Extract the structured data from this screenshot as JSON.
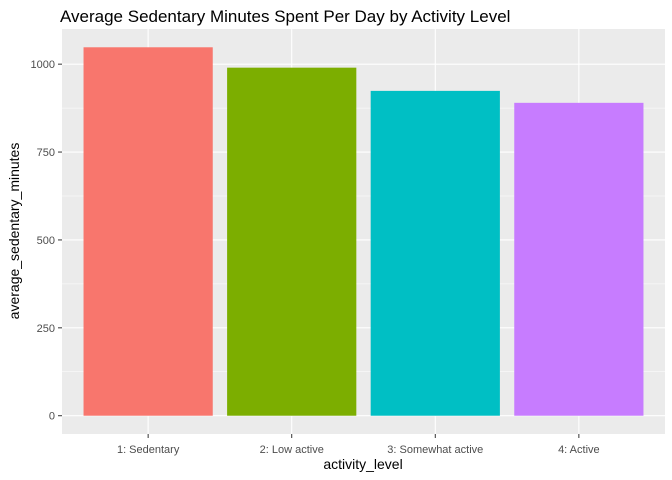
{
  "chart_data": {
    "type": "bar",
    "title": "Average Sedentary Minutes Spent Per Day by Activity Level",
    "xlabel": "activity_level",
    "ylabel": "average_sedentary_minutes",
    "categories": [
      "1: Sedentary",
      "2: Low active",
      "3: Somewhat active",
      "4: Active"
    ],
    "values": [
      1048,
      990,
      924,
      890
    ],
    "colors": [
      "#F8766D",
      "#7CAE00",
      "#00BFC4",
      "#C77CFF"
    ],
    "ylim": [
      -52,
      1100
    ],
    "yticks": [
      0,
      250,
      500,
      750,
      1000
    ],
    "y_tick_labels": [
      "0",
      "250",
      "500",
      "750",
      "1000"
    ],
    "grid": true,
    "panel_background": "#EBEBEB",
    "gridline_color": "#FFFFFF"
  }
}
